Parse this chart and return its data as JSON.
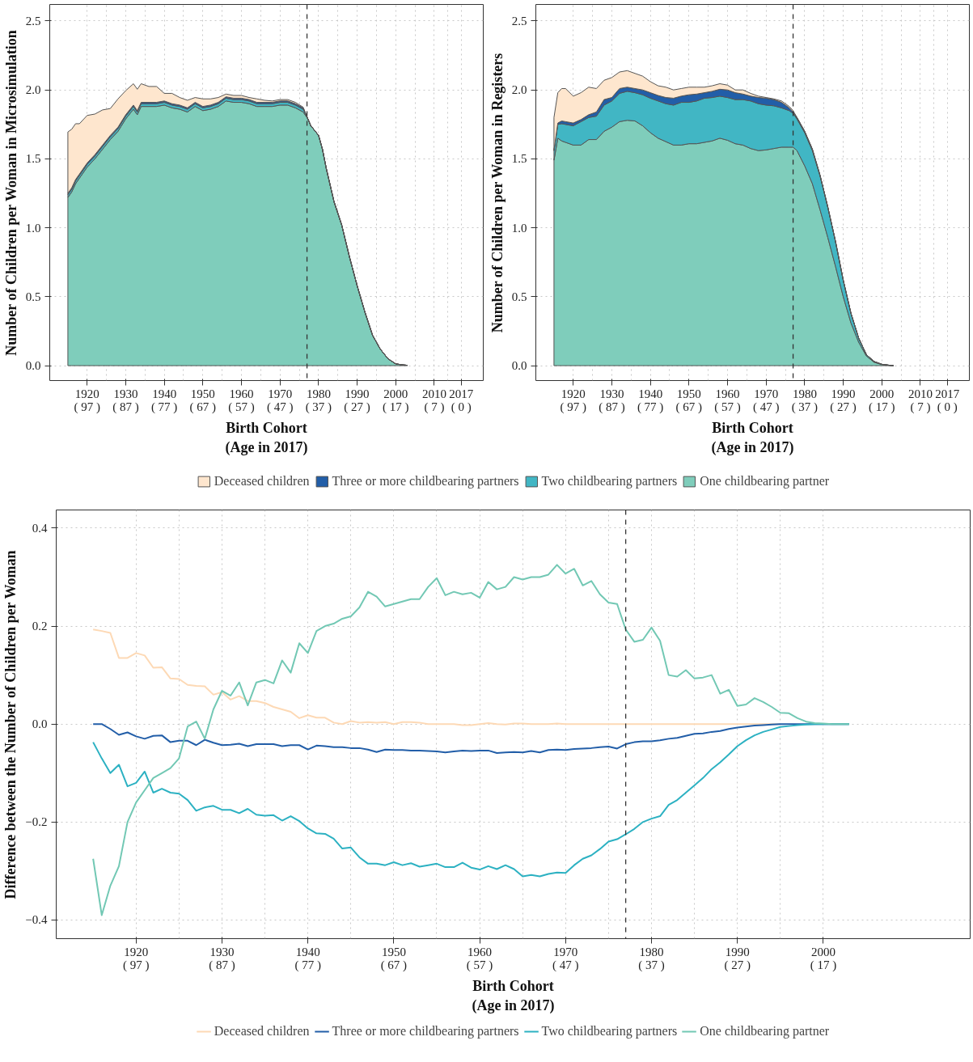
{
  "chart_data": [
    {
      "type": "area",
      "stacked": true,
      "ylabel": "Number of Children per Woman in Microsimulation",
      "xlabel": "Birth Cohort\n(Age in 2017)",
      "legend": "bottom",
      "grid": true,
      "xlim": [
        1910.3,
        2022.7
      ],
      "ylim": [
        -0.108,
        2.62
      ],
      "xticks": [
        1920,
        1930,
        1940,
        1950,
        1960,
        1970,
        1980,
        1990,
        2000,
        2010,
        2017
      ],
      "x2lim": [
        106.7,
        -5.7
      ],
      "x2ticks": [
        {
          "value": 97,
          "label": "( 97 )"
        },
        {
          "value": 87,
          "label": "( 87 )"
        },
        {
          "value": 77,
          "label": "( 77 )"
        },
        {
          "value": 67,
          "label": "( 67 )"
        },
        {
          "value": 57,
          "label": "( 57 )"
        },
        {
          "value": 47,
          "label": "( 47 )"
        },
        {
          "value": 37,
          "label": "( 37 )"
        },
        {
          "value": 27,
          "label": "( 27 )"
        },
        {
          "value": 17,
          "label": "( 17 )"
        },
        {
          "value": 7,
          "label": "( 7 )"
        },
        {
          "value": 0,
          "label": "( 0 )"
        }
      ],
      "yticks": [
        {
          "value": 0,
          "label": "0.0"
        },
        {
          "value": 0.5,
          "label": "0.5"
        },
        {
          "value": 1,
          "label": "1.0"
        },
        {
          "value": 1.5,
          "label": "1.5"
        },
        {
          "value": 2,
          "label": "2.0"
        },
        {
          "value": 2.5,
          "label": "2.5"
        }
      ],
      "ref_lines": [
        {
          "axis": "x",
          "value": 1977,
          "color": "#333333",
          "line_style": "dashed"
        }
      ],
      "x": [
        1915,
        1916,
        1917,
        1918,
        1920,
        1922,
        1924,
        1926,
        1928,
        1930,
        1932,
        1933,
        1934,
        1936,
        1938,
        1940,
        1942,
        1944,
        1946,
        1948,
        1950,
        1952,
        1954,
        1956,
        1958,
        1960,
        1962,
        1964,
        1966,
        1968,
        1970,
        1972,
        1974,
        1976,
        1977,
        1978,
        1980,
        1981,
        1982,
        1984,
        1986,
        1988,
        1990,
        1992,
        1994,
        1996,
        1998,
        2000,
        2002,
        2003
      ],
      "series": [
        {
          "name": "One childbearing partner",
          "color": "#7fcdbb",
          "values": [
            1.22,
            1.26,
            1.32,
            1.36,
            1.44,
            1.5,
            1.57,
            1.64,
            1.7,
            1.79,
            1.86,
            1.82,
            1.88,
            1.88,
            1.88,
            1.89,
            1.87,
            1.86,
            1.84,
            1.88,
            1.85,
            1.86,
            1.88,
            1.92,
            1.91,
            1.91,
            1.9,
            1.88,
            1.88,
            1.88,
            1.89,
            1.89,
            1.87,
            1.84,
            1.8,
            1.74,
            1.67,
            1.57,
            1.43,
            1.19,
            1.02,
            0.79,
            0.58,
            0.39,
            0.22,
            0.12,
            0.05,
            0.013,
            0.005,
            0.003
          ]
        },
        {
          "name": "Two childbearing partners",
          "color": "#41b6c4",
          "values": [
            0.02,
            0.02,
            0.02,
            0.02,
            0.02,
            0.02,
            0.02,
            0.02,
            0.02,
            0.02,
            0.02,
            0.02,
            0.02,
            0.02,
            0.02,
            0.02,
            0.02,
            0.02,
            0.02,
            0.02,
            0.02,
            0.02,
            0.02,
            0.02,
            0.02,
            0.02,
            0.02,
            0.02,
            0.02,
            0.02,
            0.02,
            0.02,
            0.02,
            0.02,
            0.005,
            0,
            0,
            0,
            0,
            0,
            0,
            0,
            0,
            0,
            0,
            0,
            0,
            0,
            0,
            0
          ]
        },
        {
          "name": "Three or more childbearing partners",
          "color": "#225ea8",
          "values": [
            0.01,
            0.01,
            0.01,
            0.01,
            0.01,
            0.01,
            0.01,
            0.01,
            0.01,
            0.01,
            0.01,
            0.01,
            0.01,
            0.01,
            0.01,
            0.01,
            0.01,
            0.01,
            0.01,
            0.01,
            0.01,
            0.01,
            0.01,
            0.01,
            0.01,
            0.01,
            0.01,
            0.01,
            0.01,
            0.01,
            0.01,
            0.01,
            0.01,
            0.01,
            0,
            0,
            0,
            0,
            0,
            0,
            0,
            0,
            0,
            0,
            0,
            0,
            0,
            0,
            0,
            0
          ]
        },
        {
          "name": "Deceased children",
          "color": "#fee6ce",
          "values": [
            0.445,
            0.425,
            0.405,
            0.365,
            0.345,
            0.295,
            0.255,
            0.195,
            0.205,
            0.175,
            0.155,
            0.155,
            0.135,
            0.115,
            0.115,
            0.055,
            0.075,
            0.055,
            0.055,
            0.035,
            0.055,
            0.045,
            0.035,
            0.02,
            0.02,
            0.02,
            0.015,
            0.025,
            0.015,
            0.01,
            0.01,
            0.01,
            0.01,
            0.005,
            0,
            0,
            0,
            0,
            0,
            0,
            0,
            0,
            0,
            0,
            0,
            0,
            0,
            0,
            0,
            0
          ]
        }
      ]
    },
    {
      "type": "area",
      "stacked": true,
      "ylabel": "Number of Children per Woman in Registers",
      "xlabel": "Birth Cohort\n(Age in 2017)",
      "grid": true,
      "xlim": [
        1910.3,
        2022.7
      ],
      "ylim": [
        -0.108,
        2.62
      ],
      "xticks": [
        1920,
        1930,
        1940,
        1950,
        1960,
        1970,
        1980,
        1990,
        2000,
        2010,
        2017
      ],
      "x2lim": [
        106.7,
        -5.7
      ],
      "x2ticks": [
        {
          "value": 97,
          "label": "( 97 )"
        },
        {
          "value": 87,
          "label": "( 87 )"
        },
        {
          "value": 77,
          "label": "( 77 )"
        },
        {
          "value": 67,
          "label": "( 67 )"
        },
        {
          "value": 57,
          "label": "( 57 )"
        },
        {
          "value": 47,
          "label": "( 47 )"
        },
        {
          "value": 37,
          "label": "( 37 )"
        },
        {
          "value": 27,
          "label": "( 27 )"
        },
        {
          "value": 17,
          "label": "( 17 )"
        },
        {
          "value": 7,
          "label": "( 7 )"
        },
        {
          "value": 0,
          "label": "( 0 )"
        }
      ],
      "yticks": [
        {
          "value": 0,
          "label": "0.0"
        },
        {
          "value": 0.5,
          "label": "0.5"
        },
        {
          "value": 1,
          "label": "1.0"
        },
        {
          "value": 1.5,
          "label": "1.5"
        },
        {
          "value": 2,
          "label": "2.0"
        },
        {
          "value": 2.5,
          "label": "2.5"
        }
      ],
      "ref_lines": [
        {
          "axis": "x",
          "value": 1977,
          "color": "#333333",
          "line_style": "dashed"
        }
      ],
      "x": [
        1915,
        1916,
        1917,
        1918,
        1920,
        1922,
        1924,
        1926,
        1928,
        1930,
        1932,
        1934,
        1936,
        1938,
        1940,
        1942,
        1944,
        1946,
        1948,
        1950,
        1952,
        1954,
        1956,
        1958,
        1960,
        1962,
        1964,
        1966,
        1968,
        1970,
        1972,
        1974,
        1976,
        1977,
        1978,
        1980,
        1982,
        1984,
        1986,
        1988,
        1990,
        1992,
        1994,
        1996,
        1998,
        2000,
        2002,
        2003
      ],
      "series": [
        {
          "color": "#7fcdbb",
          "values": [
            1.49,
            1.65,
            1.63,
            1.62,
            1.6,
            1.6,
            1.64,
            1.64,
            1.7,
            1.73,
            1.77,
            1.78,
            1.775,
            1.74,
            1.69,
            1.65,
            1.625,
            1.6,
            1.6,
            1.61,
            1.61,
            1.62,
            1.63,
            1.65,
            1.635,
            1.61,
            1.6,
            1.575,
            1.56,
            1.565,
            1.575,
            1.585,
            1.585,
            1.585,
            1.56,
            1.45,
            1.32,
            1.13,
            0.93,
            0.72,
            0.5,
            0.31,
            0.17,
            0.07,
            0.025,
            0.008,
            0.002,
            0
          ]
        },
        {
          "color": "#41b6c4",
          "values": [
            0.07,
            0.1,
            0.125,
            0.13,
            0.14,
            0.17,
            0.16,
            0.17,
            0.19,
            0.19,
            0.205,
            0.21,
            0.205,
            0.225,
            0.25,
            0.27,
            0.275,
            0.29,
            0.31,
            0.3,
            0.31,
            0.32,
            0.315,
            0.305,
            0.31,
            0.32,
            0.33,
            0.345,
            0.34,
            0.325,
            0.31,
            0.285,
            0.265,
            0.245,
            0.23,
            0.24,
            0.24,
            0.245,
            0.22,
            0.18,
            0.12,
            0.07,
            0.03,
            0.01,
            0.005,
            0.002,
            0.001,
            0
          ]
        },
        {
          "color": "#225ea8",
          "values": [
            0,
            0.01,
            0.02,
            0.02,
            0.02,
            0.015,
            0.02,
            0.03,
            0.04,
            0.025,
            0.035,
            0.03,
            0.03,
            0.035,
            0.04,
            0.04,
            0.045,
            0.05,
            0.045,
            0.055,
            0.05,
            0.04,
            0.045,
            0.05,
            0.055,
            0.05,
            0.04,
            0.035,
            0.045,
            0.05,
            0.045,
            0.04,
            0.02,
            0.01,
            0.01,
            0.01,
            0.01,
            0.005,
            0,
            0,
            0,
            0,
            0,
            0,
            0,
            0,
            0,
            0
          ]
        },
        {
          "color": "#fee6ce",
          "values": [
            0.24,
            0.22,
            0.235,
            0.24,
            0.195,
            0.195,
            0.2,
            0.17,
            0.14,
            0.145,
            0.12,
            0.12,
            0.11,
            0.1,
            0.08,
            0.07,
            0.075,
            0.06,
            0.055,
            0.055,
            0.05,
            0.04,
            0.04,
            0.04,
            0.035,
            0.02,
            0.03,
            0.02,
            0.01,
            0.005,
            0.005,
            0.01,
            0.01,
            0.01,
            0,
            0,
            0,
            0,
            0,
            0,
            0,
            0,
            0,
            0,
            0,
            0,
            0,
            0
          ]
        }
      ]
    },
    {
      "type": "line",
      "ylabel": "Difference between the Number of Children per Woman",
      "xlabel": "Birth Cohort\n(Age in 2017)",
      "legend": "bottom",
      "grid": true,
      "line_style": "solid",
      "xlim": [
        1910.7,
        2017.1
      ],
      "ylim": [
        -0.438,
        0.437
      ],
      "xticks": [
        1920,
        1930,
        1940,
        1950,
        1960,
        1970,
        1980,
        1990,
        2000
      ],
      "x2lim": [
        106.3,
        -0.1
      ],
      "x2ticks": [
        {
          "value": 97,
          "label": "( 97 )"
        },
        {
          "value": 87,
          "label": "( 87 )"
        },
        {
          "value": 77,
          "label": "( 77 )"
        },
        {
          "value": 67,
          "label": "( 67 )"
        },
        {
          "value": 57,
          "label": "( 57 )"
        },
        {
          "value": 47,
          "label": "( 47 )"
        },
        {
          "value": 37,
          "label": "( 37 )"
        },
        {
          "value": 27,
          "label": "( 27 )"
        },
        {
          "value": 17,
          "label": "( 17 )"
        }
      ],
      "yticks": [
        {
          "value": -0.4,
          "label": "−0.4"
        },
        {
          "value": -0.2,
          "label": "−0.2"
        },
        {
          "value": 0,
          "label": "0.0"
        },
        {
          "value": 0.2,
          "label": "0.2"
        },
        {
          "value": 0.4,
          "label": "0.4"
        }
      ],
      "ref_lines": [
        {
          "axis": "x",
          "value": 1977,
          "color": "#333333",
          "line_style": "dashed"
        }
      ],
      "x": [
        1915,
        1916,
        1917,
        1918,
        1919,
        1920,
        1921,
        1922,
        1923,
        1924,
        1925,
        1926,
        1927,
        1928,
        1929,
        1930,
        1931,
        1932,
        1933,
        1934,
        1935,
        1936,
        1937,
        1938,
        1939,
        1940,
        1941,
        1942,
        1943,
        1944,
        1945,
        1946,
        1947,
        1948,
        1949,
        1950,
        1951,
        1952,
        1953,
        1954,
        1955,
        1956,
        1957,
        1958,
        1959,
        1960,
        1961,
        1962,
        1963,
        1964,
        1965,
        1966,
        1967,
        1968,
        1969,
        1970,
        1971,
        1972,
        1973,
        1974,
        1975,
        1976,
        1977,
        1978,
        1979,
        1980,
        1981,
        1982,
        1983,
        1984,
        1985,
        1986,
        1987,
        1988,
        1989,
        1990,
        1991,
        1992,
        1993,
        1994,
        1995,
        1996,
        1997,
        1998,
        1999,
        2000,
        2001,
        2002,
        2003
      ],
      "series": [
        {
          "name": "Deceased children",
          "color": "#fdd9b5",
          "values": [
            0.193,
            0.19,
            0.186,
            0.135,
            0.135,
            0.145,
            0.14,
            0.115,
            0.116,
            0.093,
            0.092,
            0.08,
            0.078,
            0.077,
            0.06,
            0.065,
            0.05,
            0.057,
            0.047,
            0.047,
            0.043,
            0.035,
            0.03,
            0.025,
            0.012,
            0.018,
            0.013,
            0.013,
            0.003,
            0,
            0.006,
            0.003,
            0.004,
            0.003,
            0.004,
            0,
            0.004,
            0.004,
            0.003,
            0,
            0,
            0,
            0,
            -0.002,
            -0.002,
            0,
            0.002,
            0,
            -0.001,
            0.001,
            0.001,
            0,
            0,
            0,
            0.001,
            0,
            0,
            0,
            0,
            0,
            0,
            0,
            0,
            0,
            0,
            0,
            0,
            0,
            0,
            0,
            0,
            0,
            0,
            0,
            0,
            0,
            0,
            0,
            0,
            0,
            0,
            null,
            null,
            null,
            null,
            null,
            null,
            null,
            null
          ]
        },
        {
          "name": "Three or more childbearing partners",
          "color": "#225ea8",
          "values": [
            0,
            0,
            -0.01,
            -0.022,
            -0.017,
            -0.025,
            -0.03,
            -0.024,
            -0.023,
            -0.037,
            -0.034,
            -0.034,
            -0.043,
            -0.032,
            -0.038,
            -0.043,
            -0.042,
            -0.04,
            -0.045,
            -0.041,
            -0.041,
            -0.041,
            -0.045,
            -0.043,
            -0.043,
            -0.052,
            -0.044,
            -0.045,
            -0.047,
            -0.047,
            -0.049,
            -0.049,
            -0.052,
            -0.057,
            -0.052,
            -0.053,
            -0.053,
            -0.054,
            -0.054,
            -0.055,
            -0.056,
            -0.058,
            -0.056,
            -0.054,
            -0.055,
            -0.054,
            -0.054,
            -0.059,
            -0.058,
            -0.057,
            -0.058,
            -0.055,
            -0.058,
            -0.053,
            -0.052,
            -0.053,
            -0.051,
            -0.05,
            -0.049,
            -0.047,
            -0.046,
            -0.05,
            -0.041,
            -0.037,
            -0.035,
            -0.035,
            -0.033,
            -0.03,
            -0.028,
            -0.024,
            -0.02,
            -0.019,
            -0.016,
            -0.014,
            -0.01,
            -0.007,
            -0.005,
            -0.003,
            -0.002,
            -0.001,
            0,
            0,
            0,
            0,
            0,
            0,
            0,
            0,
            0
          ]
        },
        {
          "name": "Two childbearing partners",
          "color": "#2cb1c2",
          "values": [
            -0.037,
            -0.07,
            -0.1,
            -0.083,
            -0.127,
            -0.12,
            -0.097,
            -0.14,
            -0.132,
            -0.14,
            -0.142,
            -0.155,
            -0.177,
            -0.17,
            -0.167,
            -0.175,
            -0.175,
            -0.182,
            -0.173,
            -0.185,
            -0.187,
            -0.186,
            -0.197,
            -0.188,
            -0.198,
            -0.213,
            -0.223,
            -0.224,
            -0.234,
            -0.254,
            -0.252,
            -0.272,
            -0.285,
            -0.285,
            -0.288,
            -0.282,
            -0.288,
            -0.284,
            -0.291,
            -0.288,
            -0.285,
            -0.292,
            -0.292,
            -0.283,
            -0.293,
            -0.297,
            -0.29,
            -0.296,
            -0.288,
            -0.296,
            -0.311,
            -0.308,
            -0.311,
            -0.306,
            -0.303,
            -0.304,
            -0.288,
            -0.275,
            -0.268,
            -0.255,
            -0.24,
            -0.235,
            -0.225,
            -0.214,
            -0.2,
            -0.193,
            -0.188,
            -0.165,
            -0.155,
            -0.14,
            -0.125,
            -0.11,
            -0.092,
            -0.078,
            -0.062,
            -0.045,
            -0.033,
            -0.023,
            -0.016,
            -0.011,
            -0.006,
            -0.004,
            -0.002,
            -0.001,
            0,
            0,
            0,
            0,
            0
          ]
        },
        {
          "name": "One childbearing partner",
          "color": "#72c8b4",
          "values": [
            -0.275,
            -0.39,
            -0.33,
            -0.29,
            -0.2,
            -0.16,
            -0.135,
            -0.11,
            -0.1,
            -0.09,
            -0.07,
            -0.005,
            0.005,
            -0.03,
            0.03,
            0.068,
            0.058,
            0.085,
            0.038,
            0.085,
            0.09,
            0.083,
            0.13,
            0.105,
            0.165,
            0.145,
            0.19,
            0.2,
            0.205,
            0.215,
            0.22,
            0.238,
            0.27,
            0.26,
            0.24,
            0.245,
            0.25,
            0.255,
            0.255,
            0.28,
            0.298,
            0.263,
            0.27,
            0.265,
            0.268,
            0.258,
            0.29,
            0.275,
            0.28,
            0.3,
            0.295,
            0.3,
            0.3,
            0.305,
            0.325,
            0.307,
            0.317,
            0.283,
            0.292,
            0.265,
            0.248,
            0.245,
            0.193,
            0.168,
            0.172,
            0.197,
            0.17,
            0.1,
            0.097,
            0.11,
            0.093,
            0.095,
            0.1,
            0.062,
            0.07,
            0.037,
            0.04,
            0.053,
            0.045,
            0.035,
            0.023,
            0.022,
            0.012,
            0.005,
            0.002,
            0.001,
            0,
            0,
            0
          ]
        }
      ]
    }
  ]
}
